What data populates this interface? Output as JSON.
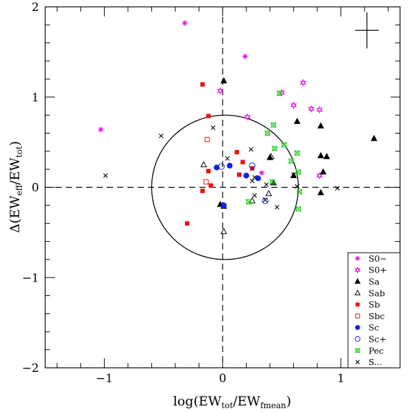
{
  "chart_data": {
    "type": "scatter",
    "xlabel": {
      "main": "log(EW",
      "sub1": "tot",
      "mid": "/EW",
      "sub2": "fmean",
      "end": ")"
    },
    "ylabel": {
      "main": "Δ(EW",
      "sub1": "eff",
      "mid": "/EW",
      "sub2": "tot",
      "end": ")"
    },
    "xlim": [
      -1.5,
      1.5
    ],
    "ylim": [
      -2,
      2
    ],
    "xticks": [
      {
        "value": -1,
        "label": "−1"
      },
      {
        "value": 0,
        "label": "0"
      },
      {
        "value": 1,
        "label": "1"
      }
    ],
    "yticks": [
      {
        "value": -2,
        "label": "−2"
      },
      {
        "value": -1,
        "label": "−1"
      },
      {
        "value": 0,
        "label": "0"
      },
      {
        "value": 1,
        "label": "1"
      },
      {
        "value": 2,
        "label": "2"
      }
    ],
    "circle": {
      "cx": 0.02,
      "cy": 0.0,
      "rx": 0.62,
      "ry": 0.8
    },
    "error_bar": {
      "x": 1.22,
      "y": 1.74,
      "dx": 0.1,
      "dy": 0.2
    },
    "legend_position": "bottom-right",
    "series": [
      {
        "name": "S0−",
        "marker": "asterisk",
        "color": "#e020e0",
        "points": [
          [
            -0.32,
            1.82
          ],
          [
            -1.03,
            0.64
          ],
          [
            0.19,
            1.45
          ],
          [
            0.33,
            0.16
          ]
        ]
      },
      {
        "name": "S0+",
        "marker": "star",
        "color": "#e020e0",
        "points": [
          [
            -0.02,
            1.07
          ],
          [
            0.5,
            1.05
          ],
          [
            0.68,
            1.16
          ],
          [
            0.21,
            0.78
          ],
          [
            0.6,
            0.91
          ],
          [
            0.75,
            0.87
          ],
          [
            0.82,
            0.86
          ],
          [
            0.82,
            0.13
          ]
        ]
      },
      {
        "name": "Sa",
        "marker": "triangle",
        "color": "#000000",
        "points": [
          [
            0.01,
            1.18
          ],
          [
            0.63,
            0.73
          ],
          [
            0.83,
            0.68
          ],
          [
            0.83,
            0.35
          ],
          [
            0.88,
            0.34
          ],
          [
            0.85,
            0.17
          ],
          [
            1.28,
            0.54
          ],
          [
            0.4,
            0.33
          ],
          [
            0.43,
            0.05
          ],
          [
            0.6,
            0.13
          ],
          [
            0.83,
            -0.06
          ],
          [
            -0.02,
            -0.19
          ],
          [
            0.01,
            -0.21
          ]
        ]
      },
      {
        "name": "Sab",
        "marker": "triangle-open",
        "color": "#000000",
        "points": [
          [
            -0.16,
            0.25
          ],
          [
            0.01,
            -0.49
          ],
          [
            0.25,
            -0.15
          ],
          [
            0.39,
            -0.07
          ],
          [
            0.41,
            0.34
          ]
        ]
      },
      {
        "name": "Sb",
        "marker": "square",
        "color": "#ee1111",
        "points": [
          [
            -0.17,
            1.14
          ],
          [
            -0.3,
            -0.4
          ],
          [
            -0.17,
            -0.04
          ],
          [
            -0.12,
            0.18
          ],
          [
            -0.1,
            0.02
          ],
          [
            -0.12,
            0.79
          ],
          [
            0.12,
            0.39
          ],
          [
            0.14,
            0.14
          ],
          [
            0.17,
            0.28
          ],
          [
            0.25,
            0.21
          ]
        ]
      },
      {
        "name": "Sbc",
        "marker": "square-open",
        "color": "#ee1111",
        "points": [
          [
            -0.13,
            0.53
          ],
          [
            -0.14,
            0.06
          ]
        ]
      },
      {
        "name": "Sc",
        "marker": "circle",
        "color": "#1122ee",
        "points": [
          [
            -0.05,
            0.22
          ],
          [
            0.06,
            0.24
          ],
          [
            0.2,
            0.13
          ],
          [
            0.3,
            0.1
          ],
          [
            0.01,
            -0.2
          ]
        ]
      },
      {
        "name": "Sc+",
        "marker": "circle-open",
        "color": "#1122ee",
        "points": [
          [
            -0.01,
            0.23
          ],
          [
            0.25,
            0.24
          ],
          [
            0.36,
            -0.15
          ]
        ]
      },
      {
        "name": "Pec",
        "marker": "pec",
        "color": "#22cc22",
        "points": [
          [
            0.48,
            1.04
          ],
          [
            0.43,
            0.69
          ],
          [
            0.38,
            0.6
          ],
          [
            0.44,
            0.43
          ],
          [
            0.52,
            0.47
          ],
          [
            0.58,
            0.29
          ],
          [
            0.63,
            0.38
          ],
          [
            0.64,
            0.17
          ],
          [
            0.65,
            -0.05
          ],
          [
            0.64,
            -0.24
          ],
          [
            0.22,
            -0.16
          ],
          [
            0.42,
            0.06
          ]
        ]
      },
      {
        "name": "S...",
        "marker": "cross",
        "color": "#000000",
        "points": [
          [
            -0.99,
            0.13
          ],
          [
            -0.52,
            0.57
          ],
          [
            -0.08,
            0.66
          ],
          [
            0.04,
            0.32
          ],
          [
            0.24,
            0.42
          ],
          [
            0.25,
            0.07
          ],
          [
            0.27,
            0.11
          ],
          [
            0.27,
            -0.09
          ],
          [
            0.36,
            -0.14
          ],
          [
            0.37,
            0.03
          ],
          [
            0.46,
            -0.22
          ],
          [
            0.6,
            0.14
          ],
          [
            0.63,
            0.01
          ],
          [
            0.97,
            -0.01
          ]
        ]
      }
    ]
  }
}
